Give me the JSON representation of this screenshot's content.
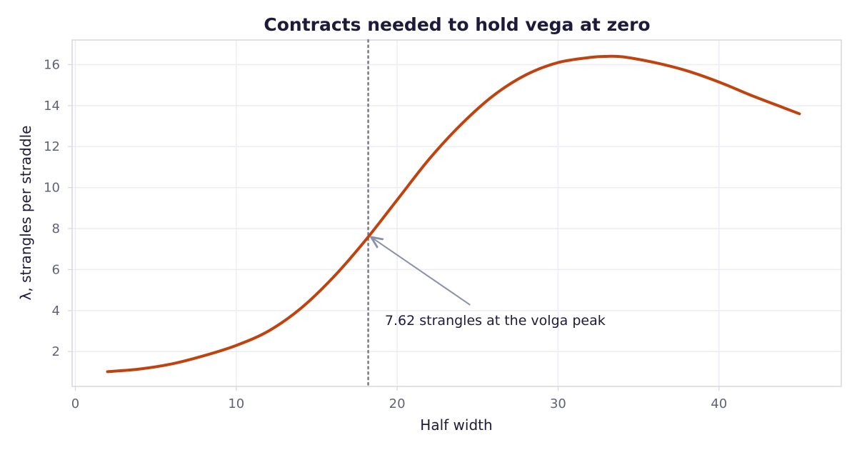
{
  "chart_data": {
    "type": "line",
    "title": "Contracts needed to hold vega at zero",
    "xlabel": "Half width",
    "ylabel": "λ, strangles per straddle",
    "xlim": [
      -0.2,
      47.6
    ],
    "ylim": [
      0.3,
      17.2
    ],
    "xticks": [
      0,
      10,
      20,
      30,
      40
    ],
    "yticks": [
      2,
      4,
      6,
      8,
      10,
      12,
      14,
      16
    ],
    "grid": true,
    "colors": {
      "line": "#c0430f",
      "reference_line": "#7d7f8c",
      "arrow": "#8a90a6"
    },
    "series": [
      {
        "x": [
          2,
          4,
          6,
          8,
          10,
          12,
          14,
          16,
          18,
          20,
          22,
          24,
          26,
          28,
          30,
          32,
          33,
          34,
          36,
          38,
          40,
          42,
          44,
          45
        ],
        "y": [
          1.02,
          1.15,
          1.4,
          1.8,
          2.3,
          3.0,
          4.1,
          5.6,
          7.4,
          9.4,
          11.4,
          13.1,
          14.5,
          15.5,
          16.1,
          16.35,
          16.4,
          16.38,
          16.1,
          15.7,
          15.15,
          14.5,
          13.9,
          13.6
        ]
      }
    ],
    "reference_line": {
      "x": 18.2,
      "style": "dotted"
    },
    "annotation": {
      "text": "7.62 strangles at the volga peak",
      "point": [
        18.2,
        7.62
      ],
      "text_anchor": [
        26.0,
        3.3
      ]
    }
  }
}
